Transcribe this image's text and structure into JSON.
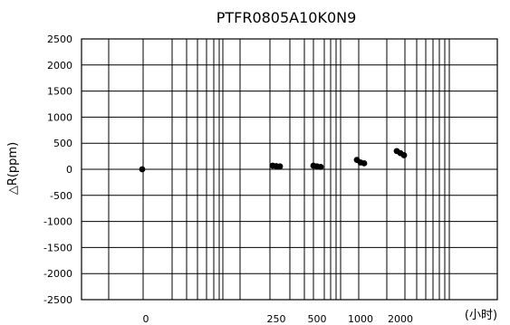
{
  "chart_data": {
    "type": "scatter",
    "title": "PTFR0805A10K0N9",
    "xlabel": "(小时)",
    "ylabel": "△R(ppm)",
    "ylim": [
      -2500,
      2500
    ],
    "y_ticks": [
      2500,
      2000,
      1500,
      1000,
      500,
      0,
      -500,
      -1000,
      -1500,
      -2000,
      -2500
    ],
    "x_tick_labels": [
      "0",
      "250",
      "500",
      "1000",
      "2000"
    ],
    "grid": true,
    "series": [
      {
        "color": "#000000",
        "points": [
          {
            "x": "0",
            "y": 0
          },
          {
            "x": "250",
            "y": 70
          },
          {
            "x": "250",
            "y": 60
          },
          {
            "x": "250",
            "y": 55
          },
          {
            "x": "500",
            "y": 70
          },
          {
            "x": "500",
            "y": 55
          },
          {
            "x": "500",
            "y": 45
          },
          {
            "x": "1000",
            "y": 180
          },
          {
            "x": "1000",
            "y": 130
          },
          {
            "x": "1000",
            "y": 115
          },
          {
            "x": "2000",
            "y": 350
          },
          {
            "x": "2000",
            "y": 310
          },
          {
            "x": "2000",
            "y": 270
          }
        ]
      }
    ]
  }
}
